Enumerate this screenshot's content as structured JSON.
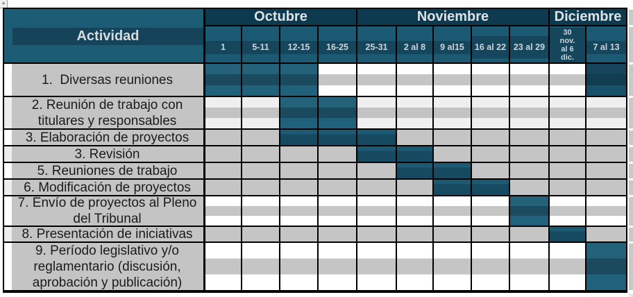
{
  "page": {
    "corner_handle_symbol": "+"
  },
  "gantt": {
    "activity_header": "Actividad",
    "months": [
      {
        "label": "Octubre",
        "weeks_span": 4
      },
      {
        "label": "Noviembre",
        "weeks_span": 5
      },
      {
        "label": "Diciembre",
        "weeks_span": 2
      }
    ],
    "week_headers": [
      "1",
      "5-11",
      "12-15",
      "16-25",
      "25-31",
      "2 al 8",
      "9 al15",
      "16 al 22",
      "23 al 29",
      "30 nov. al 6 dic.",
      "7 al 13"
    ],
    "rows": [
      {
        "label": "1.  Diversas reuniones",
        "filled_weeks": [
          {
            "week": 0,
            "tone": "medium"
          },
          {
            "week": 1,
            "tone": "medium"
          },
          {
            "week": 2,
            "tone": "medium"
          },
          {
            "week": 10,
            "tone": "dark"
          }
        ]
      },
      {
        "label": "2. Reunión de trabajo con titulares y responsables",
        "filled_weeks": [
          {
            "week": 2,
            "tone": "medium"
          },
          {
            "week": 3,
            "tone": "medium"
          }
        ]
      },
      {
        "label": "3. Elaboración de proyectos",
        "filled_weeks": [
          {
            "week": 2,
            "tone": "standard"
          },
          {
            "week": 3,
            "tone": "standard"
          },
          {
            "week": 4,
            "tone": "standard"
          }
        ]
      },
      {
        "label": "3. Revisión",
        "filled_weeks": [
          {
            "week": 4,
            "tone": "standard"
          },
          {
            "week": 5,
            "tone": "standard"
          }
        ]
      },
      {
        "label": "5. Reuniones de trabajo",
        "filled_weeks": [
          {
            "week": 5,
            "tone": "standard"
          },
          {
            "week": 6,
            "tone": "standard"
          }
        ]
      },
      {
        "label": "6. Modificación de proyectos",
        "filled_weeks": [
          {
            "week": 6,
            "tone": "standard"
          },
          {
            "week": 7,
            "tone": "standard"
          }
        ]
      },
      {
        "label": "7. Envío de proyectos al Pleno del Tribunal",
        "filled_weeks": [
          {
            "week": 8,
            "tone": "medium"
          }
        ]
      },
      {
        "label": "8. Presentación de iniciativas",
        "filled_weeks": [
          {
            "week": 9,
            "tone": "standard"
          }
        ]
      },
      {
        "label": "9. Período legislativo y/o reglamentario (discusión, aprobación y publicación)",
        "filled_weeks": [
          {
            "week": 10,
            "tone": "medium"
          }
        ]
      }
    ]
  },
  "colors": {
    "header_teal": "#1d5c75",
    "month_band": "#0d3a4f",
    "header_stripe": "#15465c",
    "gantt_fill_dark": "#154a61",
    "gantt_fill_medium": "#1b4a5f",
    "row_gray": "#c5c5c5",
    "header_text": "#d6dbde",
    "body_text": "#1b1b1b"
  },
  "chart_data": {
    "type": "table",
    "subtype": "gantt",
    "title": "",
    "columns_axis_label": "Actividad",
    "months": [
      {
        "name": "Octubre",
        "weeks": [
          "1",
          "5-11",
          "12-15",
          "16-25"
        ]
      },
      {
        "name": "Noviembre",
        "weeks": [
          "25-31",
          "2 al 8",
          "9 al15",
          "16 al 22",
          "23 al 29"
        ]
      },
      {
        "name": "Diciembre",
        "weeks": [
          "30 nov. al 6 dic.",
          "7 al 13"
        ]
      }
    ],
    "activities": [
      {
        "name": "1. Diversas reuniones",
        "active_weeks": [
          "1",
          "5-11",
          "12-15",
          "7 al 13"
        ]
      },
      {
        "name": "2. Reunión de trabajo con titulares y responsables",
        "active_weeks": [
          "12-15",
          "16-25"
        ]
      },
      {
        "name": "3. Elaboración de proyectos",
        "active_weeks": [
          "12-15",
          "16-25",
          "25-31"
        ]
      },
      {
        "name": "3. Revisión",
        "active_weeks": [
          "25-31",
          "2 al 8"
        ]
      },
      {
        "name": "5. Reuniones de trabajo",
        "active_weeks": [
          "2 al 8",
          "9 al15"
        ]
      },
      {
        "name": "6. Modificación de proyectos",
        "active_weeks": [
          "9 al15",
          "16 al 22"
        ]
      },
      {
        "name": "7. Envío de proyectos al Pleno del Tribunal",
        "active_weeks": [
          "23 al 29"
        ]
      },
      {
        "name": "8. Presentación de iniciativas",
        "active_weeks": [
          "30 nov. al 6 dic."
        ]
      },
      {
        "name": "9. Período legislativo y/o reglamentario (discusión, aprobación y publicación)",
        "active_weeks": [
          "7 al 13"
        ]
      }
    ]
  }
}
